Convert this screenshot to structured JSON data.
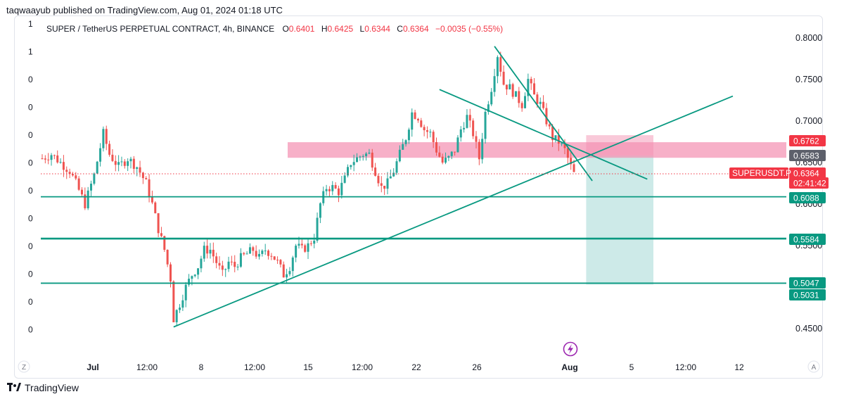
{
  "header": {
    "text": "taqwaayub published on TradingView.com, Aug 01, 2024 01:18 UTC"
  },
  "legend": {
    "title": "SUPER / TetherUS PERPETUAL CONTRACT, 4h, BINANCE",
    "o_label": "O",
    "o_value": "0.6401",
    "h_label": "H",
    "h_value": "0.6425",
    "l_label": "L",
    "l_value": "0.6344",
    "c_label": "C",
    "c_value": "0.6364",
    "change": "−0.0035 (−0.55%)"
  },
  "left_scale_labels": [
    "1",
    "1",
    "0",
    "0",
    "0",
    "0",
    "0",
    "0",
    "0",
    "0",
    "0",
    "0"
  ],
  "footer": {
    "brand": "TradingView"
  },
  "colors": {
    "up": "#26a69a",
    "down": "#ef5350",
    "line": "#089981",
    "zone": "#f48fb1",
    "target": "#b2dfdb",
    "stop": "#f8bbd0",
    "last": "#f23645",
    "gray_badge": "#5d606b"
  },
  "chart_data": {
    "type": "candlestick",
    "symbol": "SUPERUSDT.P",
    "interval": "4h",
    "ylim": [
      0.43,
      0.81
    ],
    "y_ticks": [
      "0.8000",
      "0.7500",
      "0.7000",
      "0.6500",
      "0.6000",
      "0.5500",
      "0.4500"
    ],
    "x_ticks": [
      {
        "label": "Jul",
        "bold": true
      },
      {
        "label": "12:00"
      },
      {
        "label": "8"
      },
      {
        "label": "12:00"
      },
      {
        "label": "15"
      },
      {
        "label": "12:00"
      },
      {
        "label": "22"
      },
      {
        "label": "26"
      },
      {
        "label": "Aug",
        "bold": true
      },
      {
        "label": "5"
      },
      {
        "label": "12:00"
      },
      {
        "label": "12"
      }
    ],
    "axis_buttons": {
      "left": "Z",
      "right": "A"
    },
    "close_path": [
      [
        0,
        0.655
      ],
      [
        3,
        0.66
      ],
      [
        6,
        0.65
      ],
      [
        9,
        0.64
      ],
      [
        11,
        0.625
      ],
      [
        14,
        0.6
      ],
      [
        17,
        0.635
      ],
      [
        20,
        0.685
      ],
      [
        22,
        0.66
      ],
      [
        25,
        0.645
      ],
      [
        28,
        0.655
      ],
      [
        31,
        0.645
      ],
      [
        34,
        0.625
      ],
      [
        36,
        0.6
      ],
      [
        38,
        0.57
      ],
      [
        40,
        0.545
      ],
      [
        42,
        0.51
      ],
      [
        43,
        0.462
      ],
      [
        45,
        0.48
      ],
      [
        47,
        0.5
      ],
      [
        49,
        0.515
      ],
      [
        51,
        0.525
      ],
      [
        53,
        0.545
      ],
      [
        55,
        0.545
      ],
      [
        57,
        0.53
      ],
      [
        59,
        0.515
      ],
      [
        61,
        0.53
      ],
      [
        63,
        0.525
      ],
      [
        65,
        0.535
      ],
      [
        67,
        0.54
      ],
      [
        69,
        0.545
      ],
      [
        71,
        0.535
      ],
      [
        73,
        0.545
      ],
      [
        75,
        0.54
      ],
      [
        77,
        0.53
      ],
      [
        79,
        0.515
      ],
      [
        81,
        0.525
      ],
      [
        83,
        0.55
      ],
      [
        85,
        0.545
      ],
      [
        87,
        0.55
      ],
      [
        89,
        0.56
      ],
      [
        91,
        0.6
      ],
      [
        93,
        0.62
      ],
      [
        95,
        0.62
      ],
      [
        97,
        0.615
      ],
      [
        99,
        0.63
      ],
      [
        101,
        0.65
      ],
      [
        103,
        0.655
      ],
      [
        105,
        0.66
      ],
      [
        107,
        0.66
      ],
      [
        109,
        0.64
      ],
      [
        111,
        0.62
      ],
      [
        113,
        0.625
      ],
      [
        115,
        0.64
      ],
      [
        117,
        0.66
      ],
      [
        119,
        0.68
      ],
      [
        121,
        0.71
      ],
      [
        123,
        0.705
      ],
      [
        125,
        0.69
      ],
      [
        127,
        0.685
      ],
      [
        129,
        0.665
      ],
      [
        131,
        0.65
      ],
      [
        133,
        0.655
      ],
      [
        135,
        0.665
      ],
      [
        137,
        0.69
      ],
      [
        139,
        0.705
      ],
      [
        141,
        0.685
      ],
      [
        143,
        0.655
      ],
      [
        145,
        0.71
      ],
      [
        147,
        0.74
      ],
      [
        149,
        0.78
      ],
      [
        151,
        0.745
      ],
      [
        153,
        0.74
      ],
      [
        155,
        0.73
      ],
      [
        157,
        0.72
      ],
      [
        159,
        0.75
      ],
      [
        161,
        0.73
      ],
      [
        163,
        0.72
      ],
      [
        165,
        0.7
      ],
      [
        167,
        0.68
      ],
      [
        169,
        0.675
      ],
      [
        171,
        0.665
      ],
      [
        173,
        0.645
      ],
      [
        174,
        0.6364
      ]
    ],
    "candle_count": 175,
    "levels": [
      {
        "name": "zone-top",
        "value": 0.6762,
        "label": "0.6762",
        "style": "red-badge"
      },
      {
        "name": "zone-bottom",
        "value": 0.6583,
        "label": "0.6583",
        "style": "gray-badge"
      },
      {
        "name": "support-1",
        "value": 0.6088,
        "label": "0.6088",
        "style": "green-badge"
      },
      {
        "name": "support-2",
        "value": 0.5584,
        "label": "0.5584",
        "style": "green-badge"
      },
      {
        "name": "support-3",
        "value": 0.5047,
        "label": "0.5047",
        "style": "green-badge"
      },
      {
        "name": "target",
        "value": 0.5031,
        "label": "0.5031",
        "style": "green-badge"
      }
    ],
    "last_price": {
      "label": "SUPERUSDT.P",
      "value": 0.6364,
      "price": "0.6364",
      "countdown": "02:41:42"
    },
    "trendlines": [
      {
        "name": "rising-trendline",
        "from": [
          43,
          0.452
        ],
        "to": [
          226,
          0.73
        ]
      },
      {
        "name": "descending-line-1",
        "from": [
          130,
          0.738
        ],
        "to": [
          198,
          0.63
        ]
      },
      {
        "name": "descending-line-2",
        "from": [
          148,
          0.79
        ],
        "to": [
          180,
          0.628
        ]
      }
    ],
    "short_position": {
      "entry": 0.6583,
      "stop": 0.6762,
      "target": 0.5031,
      "x_from": 178,
      "x_to": 200
    },
    "event_icon": "lightning-icon"
  }
}
